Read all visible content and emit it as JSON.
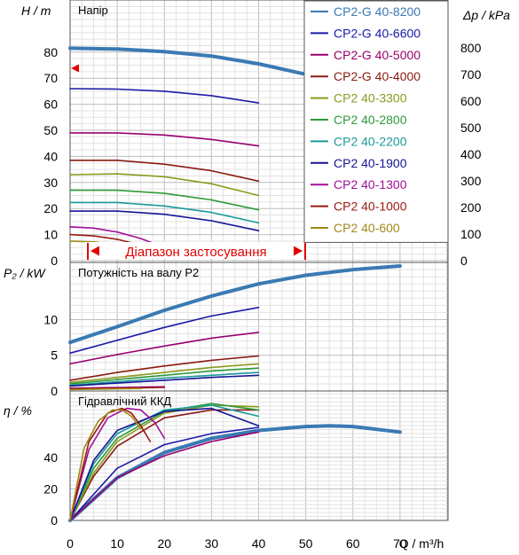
{
  "chart_data": [
    {
      "type": "line",
      "title": "Напір",
      "ylabel": "H / m",
      "y2label": "Δp / kPa",
      "xlim": [
        0,
        70
      ],
      "ylim": [
        0,
        100
      ],
      "yticks": [
        0,
        10,
        20,
        30,
        40,
        50,
        60,
        70,
        80
      ],
      "y2ticks": [
        0,
        100,
        200,
        300,
        400,
        500,
        600,
        700,
        800
      ],
      "y2lim": [
        0,
        980
      ],
      "legend_position": "top-right",
      "annotation": "Діапазон застосування",
      "series": [
        {
          "name": "CP2-G 40-8200",
          "color": "#3a7ab3",
          "thick": true,
          "x": [
            0,
            10,
            20,
            30,
            40,
            50,
            60,
            70
          ],
          "y": [
            81.5,
            81.2,
            80.2,
            78.5,
            75.5,
            71.5,
            66.5,
            60.5
          ]
        },
        {
          "name": "CP2-G 40-6600",
          "color": "#1a1aa8",
          "x": [
            0,
            10,
            20,
            30,
            40
          ],
          "y": [
            66,
            65.8,
            65,
            63.3,
            60.5
          ]
        },
        {
          "name": "CP2-G 40-5000",
          "color": "#990070",
          "x": [
            0,
            10,
            20,
            30,
            40
          ],
          "y": [
            49,
            49,
            48.2,
            46.5,
            44
          ]
        },
        {
          "name": "CP2-G 40-4000",
          "color": "#8b1a10",
          "x": [
            0,
            10,
            20,
            30,
            40
          ],
          "y": [
            38.5,
            38.5,
            37,
            34.5,
            30.5
          ]
        },
        {
          "name": "CP2 40-3300",
          "color": "#8c9a1c",
          "x": [
            0,
            10,
            20,
            30,
            40
          ],
          "y": [
            33,
            33.3,
            32.2,
            29.5,
            25
          ]
        },
        {
          "name": "CP2 40-2800",
          "color": "#2e9a3a",
          "x": [
            0,
            10,
            20,
            30,
            40
          ],
          "y": [
            27,
            27,
            25.8,
            23.3,
            19.5
          ]
        },
        {
          "name": "CP2 40-2200",
          "color": "#1a9a9a",
          "x": [
            0,
            10,
            20,
            30,
            40
          ],
          "y": [
            22.3,
            22.3,
            21,
            18.5,
            14.5
          ]
        },
        {
          "name": "CP2 40-1900",
          "color": "#151596",
          "x": [
            0,
            10,
            20,
            30,
            40
          ],
          "y": [
            19,
            19,
            17.8,
            15.3,
            11.5
          ]
        },
        {
          "name": "CP2 40-1300",
          "color": "#a0109a",
          "x": [
            0,
            5,
            10,
            15,
            20
          ],
          "y": [
            13,
            12.5,
            11,
            8.5,
            5
          ]
        },
        {
          "name": "CP2 40-1000",
          "color": "#9a1a10",
          "x": [
            0,
            5,
            10,
            15,
            20
          ],
          "y": [
            10,
            9.5,
            8.2,
            6,
            3
          ]
        },
        {
          "name": "CP2 40-600",
          "color": "#a08a1a",
          "x": [
            0,
            5,
            10,
            15
          ],
          "y": [
            7.5,
            7.2,
            6,
            4
          ]
        }
      ]
    },
    {
      "type": "line",
      "title": "Потужність на валу P2",
      "ylabel": "P₂ / kW",
      "xlim": [
        0,
        70
      ],
      "ylim": [
        0,
        18
      ],
      "yticks": [
        0,
        5,
        10
      ],
      "series": [
        {
          "color": "#3a7ab3",
          "thick": true,
          "x": [
            0,
            10,
            20,
            30,
            40,
            50,
            60,
            70
          ],
          "y": [
            6.8,
            9,
            11.3,
            13.3,
            15,
            16.2,
            17,
            17.5
          ]
        },
        {
          "color": "#1a1aa8",
          "x": [
            0,
            10,
            20,
            30,
            40
          ],
          "y": [
            5.3,
            7.1,
            8.9,
            10.5,
            11.7
          ]
        },
        {
          "color": "#990070",
          "x": [
            0,
            10,
            20,
            30,
            40
          ],
          "y": [
            3.8,
            5.1,
            6.3,
            7.4,
            8.2
          ]
        },
        {
          "color": "#8b1a10",
          "x": [
            0,
            10,
            20,
            30,
            40
          ],
          "y": [
            1.5,
            2.6,
            3.5,
            4.3,
            4.9
          ]
        },
        {
          "color": "#8c9a1c",
          "x": [
            0,
            10,
            20,
            30,
            40
          ],
          "y": [
            1.2,
            1.9,
            2.6,
            3.3,
            3.8
          ]
        },
        {
          "color": "#2e9a3a",
          "x": [
            0,
            10,
            20,
            30,
            40
          ],
          "y": [
            1,
            1.6,
            2.2,
            2.8,
            3.2
          ]
        },
        {
          "color": "#1a9a9a",
          "x": [
            0,
            10,
            20,
            30,
            40
          ],
          "y": [
            0.8,
            1.3,
            1.8,
            2.2,
            2.6
          ]
        },
        {
          "color": "#151596",
          "x": [
            0,
            10,
            20,
            30,
            40
          ],
          "y": [
            0.7,
            1.1,
            1.5,
            1.9,
            2.2
          ]
        },
        {
          "color": "#a0109a",
          "x": [
            0,
            5,
            10,
            15,
            20
          ],
          "y": [
            0.4,
            0.45,
            0.5,
            0.55,
            0.6
          ]
        },
        {
          "color": "#9a1a10",
          "x": [
            0,
            5,
            10,
            15,
            20
          ],
          "y": [
            0.3,
            0.35,
            0.4,
            0.45,
            0.5
          ]
        },
        {
          "color": "#a08a1a",
          "x": [
            0,
            5,
            10,
            15
          ],
          "y": [
            0.2,
            0.25,
            0.3,
            0.35
          ]
        }
      ]
    },
    {
      "type": "line",
      "title": "Гідравлічний ККД",
      "ylabel": "η / %",
      "xlabel": "Q / m³/h",
      "xlim": [
        0,
        80
      ],
      "ylim": [
        0,
        82
      ],
      "xticks": [
        0,
        10,
        20,
        30,
        40,
        50,
        60,
        70
      ],
      "yticks": [
        0,
        20,
        40
      ],
      "series": [
        {
          "color": "#3a7ab3",
          "thick": true,
          "x": [
            0,
            10,
            20,
            30,
            40,
            50,
            55,
            60,
            70
          ],
          "y": [
            0,
            27,
            43,
            52,
            57,
            59.5,
            60,
            59.5,
            56
          ]
        },
        {
          "color": "#1a1aa8",
          "x": [
            0,
            10,
            20,
            30,
            40
          ],
          "y": [
            0,
            33,
            48,
            55,
            59
          ]
        },
        {
          "color": "#990070",
          "x": [
            0,
            10,
            20,
            30,
            40
          ],
          "y": [
            0,
            27,
            41,
            50,
            56
          ]
        },
        {
          "color": "#8b1a10",
          "x": [
            0,
            5,
            10,
            20,
            30,
            40
          ],
          "y": [
            0,
            28,
            47,
            65,
            70,
            70
          ]
        },
        {
          "color": "#8c9a1c",
          "x": [
            0,
            5,
            10,
            20,
            30,
            40
          ],
          "y": [
            0,
            30,
            50,
            68,
            73,
            72
          ]
        },
        {
          "color": "#2e9a3a",
          "x": [
            0,
            5,
            10,
            20,
            30,
            40
          ],
          "y": [
            0,
            33,
            52,
            69,
            74,
            70
          ]
        },
        {
          "color": "#1a9a9a",
          "x": [
            0,
            5,
            10,
            20,
            30,
            40
          ],
          "y": [
            0,
            36,
            55,
            70,
            73,
            66
          ]
        },
        {
          "color": "#151596",
          "x": [
            0,
            5,
            10,
            20,
            30,
            40
          ],
          "y": [
            0,
            38,
            57,
            69,
            71,
            60
          ]
        },
        {
          "color": "#a0109a",
          "x": [
            0,
            4,
            8,
            12,
            15,
            18,
            20
          ],
          "y": [
            0,
            45,
            65,
            71,
            70,
            62,
            52
          ]
        },
        {
          "color": "#9a1a10",
          "x": [
            0,
            4,
            8,
            11,
            13,
            15,
            17
          ],
          "y": [
            0,
            50,
            68,
            71,
            68,
            60,
            50
          ]
        },
        {
          "color": "#a08a1a",
          "x": [
            0,
            3,
            6,
            9,
            11,
            13,
            15
          ],
          "y": [
            0,
            46,
            63,
            70,
            70,
            66,
            58
          ]
        }
      ]
    }
  ]
}
